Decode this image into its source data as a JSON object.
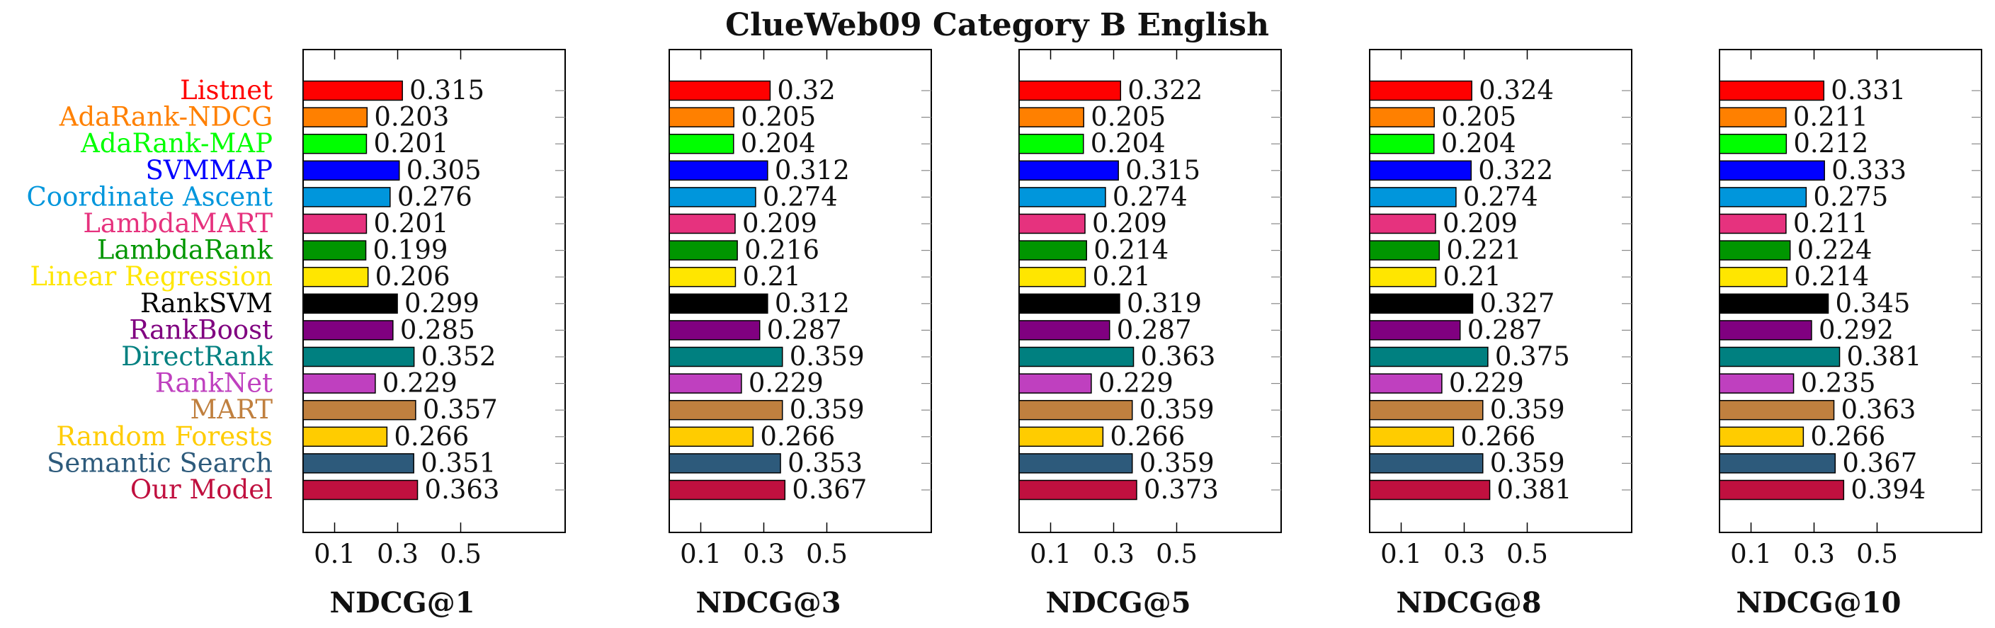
{
  "chart_data": {
    "title": "ClueWeb09 Category B English",
    "type": "bar",
    "orientation": "horizontal",
    "categories": [
      "Listnet",
      "AdaRank-NDCG",
      "AdaRank-MAP",
      "SVMMAP",
      "Coordinate Ascent",
      "LambdaMART",
      "LambdaRank",
      "Linear Regression",
      "RankSVM",
      "RankBoost",
      "DirectRank",
      "RankNet",
      "MART",
      "Random Forests",
      "Semantic Search",
      "Our Model"
    ],
    "category_colors": [
      "#ff0000",
      "#ff8000",
      "#00ff00",
      "#0000ff",
      "#0096dc",
      "#e6327e",
      "#009600",
      "#ffe600",
      "#000000",
      "#800080",
      "#008080",
      "#bf40bf",
      "#c0803f",
      "#ffcc00",
      "#2d5a7b",
      "#c0103f"
    ],
    "xticks": [
      0.1,
      0.3,
      0.5
    ],
    "xlim": [
      0,
      0.8
    ],
    "panels": [
      {
        "xlabel": "NDCG@1",
        "values": [
          0.315,
          0.203,
          0.201,
          0.305,
          0.276,
          0.201,
          0.199,
          0.206,
          0.299,
          0.285,
          0.352,
          0.229,
          0.357,
          0.266,
          0.351,
          0.363
        ],
        "value_labels": [
          "0.315",
          "0.203",
          "0.201",
          "0.305",
          "0.276",
          "0.201",
          "0.199",
          "0.206",
          "0.299",
          "0.285",
          "0.352",
          "0.229",
          "0.357",
          "0.266",
          "0.351",
          "0.363"
        ]
      },
      {
        "xlabel": "NDCG@3",
        "values": [
          0.32,
          0.205,
          0.204,
          0.312,
          0.274,
          0.209,
          0.216,
          0.21,
          0.312,
          0.287,
          0.359,
          0.229,
          0.359,
          0.266,
          0.353,
          0.367
        ],
        "value_labels": [
          "0.32",
          "0.205",
          "0.204",
          "0.312",
          "0.274",
          "0.209",
          "0.216",
          "0.21",
          "0.312",
          "0.287",
          "0.359",
          "0.229",
          "0.359",
          "0.266",
          "0.353",
          "0.367"
        ]
      },
      {
        "xlabel": "NDCG@5",
        "values": [
          0.322,
          0.205,
          0.204,
          0.315,
          0.274,
          0.209,
          0.214,
          0.21,
          0.319,
          0.287,
          0.363,
          0.229,
          0.359,
          0.266,
          0.359,
          0.373
        ],
        "value_labels": [
          "0.322",
          "0.205",
          "0.204",
          "0.315",
          "0.274",
          "0.209",
          "0.214",
          "0.21",
          "0.319",
          "0.287",
          "0.363",
          "0.229",
          "0.359",
          "0.266",
          "0.359",
          "0.373"
        ]
      },
      {
        "xlabel": "NDCG@8",
        "values": [
          0.324,
          0.205,
          0.204,
          0.322,
          0.274,
          0.209,
          0.221,
          0.21,
          0.327,
          0.287,
          0.375,
          0.229,
          0.359,
          0.266,
          0.359,
          0.381
        ],
        "value_labels": [
          "0.324",
          "0.205",
          "0.204",
          "0.322",
          "0.274",
          "0.209",
          "0.221",
          "0.21",
          "0.327",
          "0.287",
          "0.375",
          "0.229",
          "0.359",
          "0.266",
          "0.359",
          "0.381"
        ]
      },
      {
        "xlabel": "NDCG@10",
        "values": [
          0.331,
          0.211,
          0.212,
          0.333,
          0.275,
          0.211,
          0.224,
          0.214,
          0.345,
          0.292,
          0.381,
          0.235,
          0.363,
          0.266,
          0.367,
          0.394
        ],
        "value_labels": [
          "0.331",
          "0.211",
          "0.212",
          "0.333",
          "0.275",
          "0.211",
          "0.224",
          "0.214",
          "0.345",
          "0.292",
          "0.381",
          "0.235",
          "0.363",
          "0.266",
          "0.367",
          "0.394"
        ]
      }
    ]
  }
}
